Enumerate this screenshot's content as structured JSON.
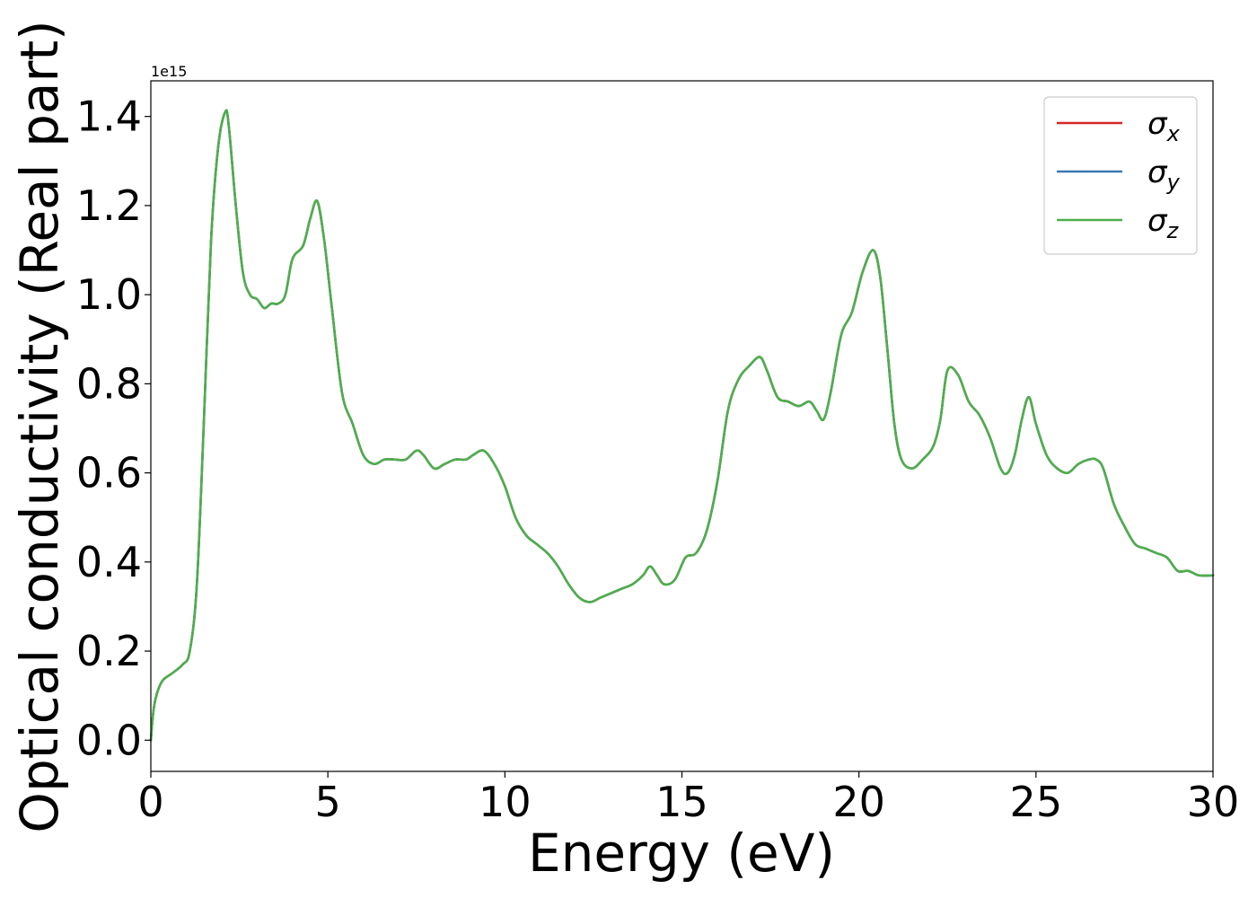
{
  "chart_data": {
    "type": "line",
    "title": "",
    "xlabel": "Energy (eV)",
    "ylabel": "Optical conductivity (Real part)",
    "y_offset_label": "1e15",
    "y_scale_factor": 1000000000000000.0,
    "xlim": [
      0,
      30
    ],
    "ylim": [
      -0.07,
      1.48
    ],
    "xticks": [
      0,
      5,
      10,
      15,
      20,
      25,
      30
    ],
    "xtick_labels": [
      "0",
      "5",
      "10",
      "15",
      "20",
      "25",
      "30"
    ],
    "yticks": [
      0.0,
      0.2,
      0.4,
      0.6,
      0.8,
      1.0,
      1.2,
      1.4
    ],
    "ytick_labels": [
      "0.0",
      "0.2",
      "0.4",
      "0.6",
      "0.8",
      "1.0",
      "1.2",
      "1.4"
    ],
    "grid": false,
    "legend": "top-right",
    "x": [
      0,
      0.1,
      0.3,
      0.6,
      0.9,
      1.1,
      1.3,
      1.5,
      1.7,
      1.9,
      2.1,
      2.2,
      2.4,
      2.6,
      2.8,
      3.0,
      3.2,
      3.4,
      3.6,
      3.8,
      4.0,
      4.3,
      4.5,
      4.7,
      4.9,
      5.1,
      5.4,
      5.7,
      6.0,
      6.3,
      6.6,
      6.9,
      7.2,
      7.5,
      7.7,
      8.0,
      8.3,
      8.6,
      8.9,
      9.1,
      9.4,
      9.7,
      10.0,
      10.3,
      10.6,
      10.9,
      11.2,
      11.5,
      11.8,
      12.1,
      12.4,
      12.7,
      13.0,
      13.3,
      13.6,
      13.9,
      14.1,
      14.3,
      14.5,
      14.8,
      15.1,
      15.4,
      15.7,
      16.0,
      16.3,
      16.6,
      16.9,
      17.2,
      17.4,
      17.7,
      18.0,
      18.3,
      18.6,
      18.8,
      19.0,
      19.2,
      19.5,
      19.8,
      20.1,
      20.4,
      20.6,
      20.8,
      21.0,
      21.2,
      21.5,
      21.8,
      22.1,
      22.3,
      22.5,
      22.8,
      23.1,
      23.4,
      23.7,
      24.0,
      24.2,
      24.4,
      24.6,
      24.8,
      25.0,
      25.3,
      25.6,
      25.9,
      26.2,
      26.5,
      26.7,
      26.9,
      27.2,
      27.5,
      27.8,
      28.1,
      28.4,
      28.7,
      29.0,
      29.3,
      29.6,
      30.0
    ],
    "series": [
      {
        "name": "σx",
        "color": "#d62728",
        "values": [
          0.0,
          0.08,
          0.13,
          0.15,
          0.17,
          0.2,
          0.35,
          0.72,
          1.12,
          1.33,
          1.41,
          1.38,
          1.2,
          1.05,
          1.0,
          0.99,
          0.97,
          0.98,
          0.98,
          1.0,
          1.08,
          1.11,
          1.17,
          1.21,
          1.12,
          0.98,
          0.78,
          0.71,
          0.64,
          0.62,
          0.63,
          0.63,
          0.63,
          0.65,
          0.64,
          0.61,
          0.62,
          0.63,
          0.63,
          0.64,
          0.65,
          0.62,
          0.57,
          0.5,
          0.46,
          0.44,
          0.42,
          0.39,
          0.35,
          0.32,
          0.31,
          0.32,
          0.33,
          0.34,
          0.35,
          0.37,
          0.39,
          0.37,
          0.35,
          0.36,
          0.41,
          0.42,
          0.47,
          0.58,
          0.74,
          0.81,
          0.84,
          0.86,
          0.83,
          0.77,
          0.76,
          0.75,
          0.76,
          0.74,
          0.72,
          0.78,
          0.91,
          0.96,
          1.05,
          1.1,
          1.04,
          0.88,
          0.71,
          0.63,
          0.61,
          0.63,
          0.66,
          0.72,
          0.83,
          0.82,
          0.76,
          0.73,
          0.68,
          0.61,
          0.6,
          0.64,
          0.72,
          0.77,
          0.71,
          0.64,
          0.61,
          0.6,
          0.62,
          0.63,
          0.63,
          0.61,
          0.53,
          0.48,
          0.44,
          0.43,
          0.42,
          0.41,
          0.38,
          0.38,
          0.37,
          0.37
        ]
      },
      {
        "name": "σy",
        "color": "#3a78b4",
        "values": [
          0.0,
          0.08,
          0.13,
          0.15,
          0.17,
          0.2,
          0.35,
          0.72,
          1.12,
          1.33,
          1.41,
          1.38,
          1.2,
          1.05,
          1.0,
          0.99,
          0.97,
          0.98,
          0.98,
          1.0,
          1.08,
          1.11,
          1.17,
          1.21,
          1.12,
          0.98,
          0.78,
          0.71,
          0.64,
          0.62,
          0.63,
          0.63,
          0.63,
          0.65,
          0.64,
          0.61,
          0.62,
          0.63,
          0.63,
          0.64,
          0.65,
          0.62,
          0.57,
          0.5,
          0.46,
          0.44,
          0.42,
          0.39,
          0.35,
          0.32,
          0.31,
          0.32,
          0.33,
          0.34,
          0.35,
          0.37,
          0.39,
          0.37,
          0.35,
          0.36,
          0.41,
          0.42,
          0.47,
          0.58,
          0.74,
          0.81,
          0.84,
          0.86,
          0.83,
          0.77,
          0.76,
          0.75,
          0.76,
          0.74,
          0.72,
          0.78,
          0.91,
          0.96,
          1.05,
          1.1,
          1.04,
          0.88,
          0.71,
          0.63,
          0.61,
          0.63,
          0.66,
          0.72,
          0.83,
          0.82,
          0.76,
          0.73,
          0.68,
          0.61,
          0.6,
          0.64,
          0.72,
          0.77,
          0.71,
          0.64,
          0.61,
          0.6,
          0.62,
          0.63,
          0.63,
          0.61,
          0.53,
          0.48,
          0.44,
          0.43,
          0.42,
          0.41,
          0.38,
          0.38,
          0.37,
          0.37
        ]
      },
      {
        "name": "σz",
        "color": "#4daf4a",
        "values": [
          0.0,
          0.08,
          0.13,
          0.15,
          0.17,
          0.2,
          0.35,
          0.72,
          1.12,
          1.33,
          1.41,
          1.38,
          1.2,
          1.05,
          1.0,
          0.99,
          0.97,
          0.98,
          0.98,
          1.0,
          1.08,
          1.11,
          1.17,
          1.21,
          1.12,
          0.98,
          0.78,
          0.71,
          0.64,
          0.62,
          0.63,
          0.63,
          0.63,
          0.65,
          0.64,
          0.61,
          0.62,
          0.63,
          0.63,
          0.64,
          0.65,
          0.62,
          0.57,
          0.5,
          0.46,
          0.44,
          0.42,
          0.39,
          0.35,
          0.32,
          0.31,
          0.32,
          0.33,
          0.34,
          0.35,
          0.37,
          0.39,
          0.37,
          0.35,
          0.36,
          0.41,
          0.42,
          0.47,
          0.58,
          0.74,
          0.81,
          0.84,
          0.86,
          0.83,
          0.77,
          0.76,
          0.75,
          0.76,
          0.74,
          0.72,
          0.78,
          0.91,
          0.96,
          1.05,
          1.1,
          1.04,
          0.88,
          0.71,
          0.63,
          0.61,
          0.63,
          0.66,
          0.72,
          0.83,
          0.82,
          0.76,
          0.73,
          0.68,
          0.61,
          0.6,
          0.64,
          0.72,
          0.77,
          0.71,
          0.64,
          0.61,
          0.6,
          0.62,
          0.63,
          0.63,
          0.61,
          0.53,
          0.48,
          0.44,
          0.43,
          0.42,
          0.41,
          0.38,
          0.38,
          0.37,
          0.37
        ]
      }
    ]
  }
}
